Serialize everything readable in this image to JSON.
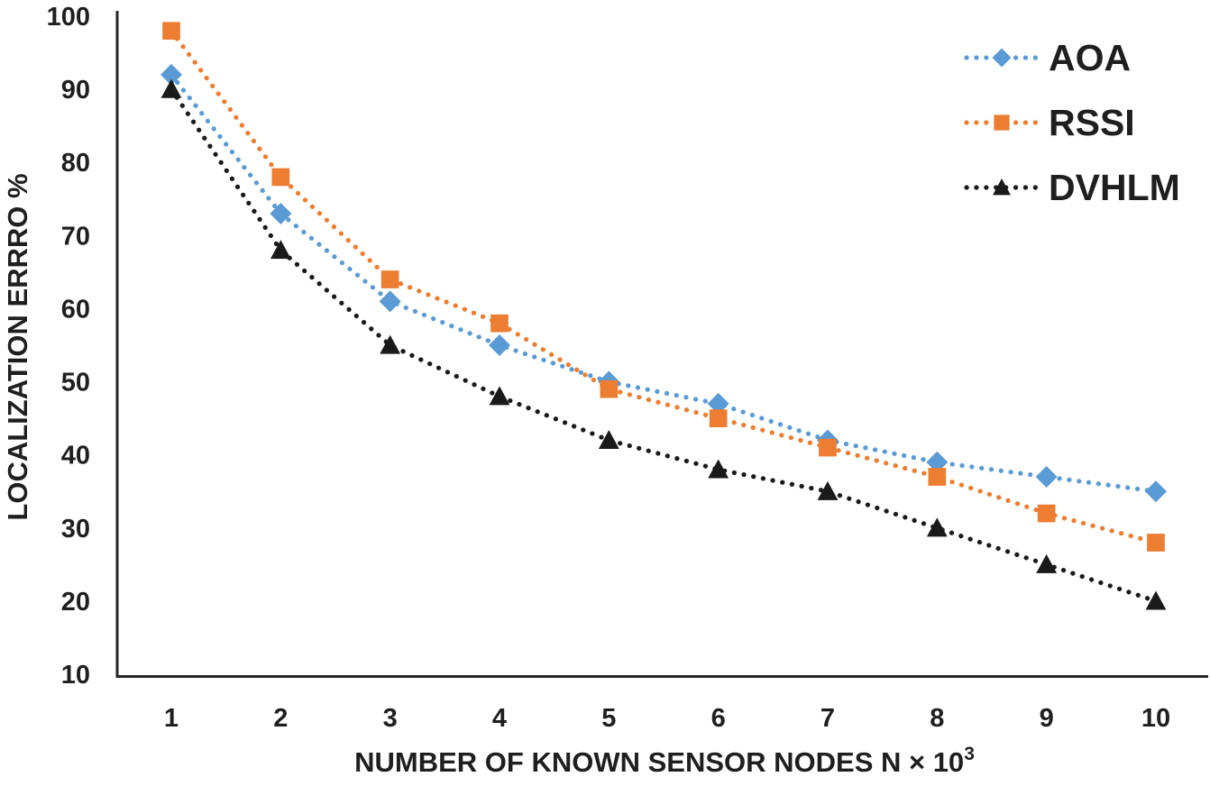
{
  "chart_data": {
    "type": "line",
    "title": "",
    "xlabel": "NUMBER OF KNOWN SENSOR NODES N × 10",
    "xlabel_superscript": "3",
    "ylabel": "LOCALIZATION ERRRO %",
    "x": [
      1,
      2,
      3,
      4,
      5,
      6,
      7,
      8,
      9,
      10
    ],
    "x_ticks": [
      "1",
      "2",
      "3",
      "4",
      "5",
      "6",
      "7",
      "8",
      "9",
      "10"
    ],
    "y_ticks": [
      "100",
      "90",
      "80",
      "70",
      "60",
      "50",
      "40",
      "30",
      "20",
      "10"
    ],
    "xlim": [
      1,
      10
    ],
    "ylim": [
      10,
      100
    ],
    "grid": false,
    "line_style": "dotted",
    "legend_position": "top-right",
    "background_color": "#FFFFFF",
    "text_color": "#1F1F1F",
    "axis_color": "#262626",
    "series": [
      {
        "name": "AOA",
        "marker": "diamond",
        "color": "#5B9BD5",
        "values": [
          92,
          73,
          61,
          55,
          50,
          47,
          42,
          39,
          37,
          35
        ]
      },
      {
        "name": "RSSI",
        "marker": "square",
        "color": "#ED7D31",
        "values": [
          98,
          78,
          64,
          58,
          49,
          45,
          41,
          37,
          32,
          28
        ]
      },
      {
        "name": "DVHLM",
        "marker": "triangle",
        "color": "#1A1A1A",
        "values": [
          90,
          68,
          55,
          48,
          42,
          38,
          35,
          30,
          25,
          20
        ]
      }
    ]
  }
}
